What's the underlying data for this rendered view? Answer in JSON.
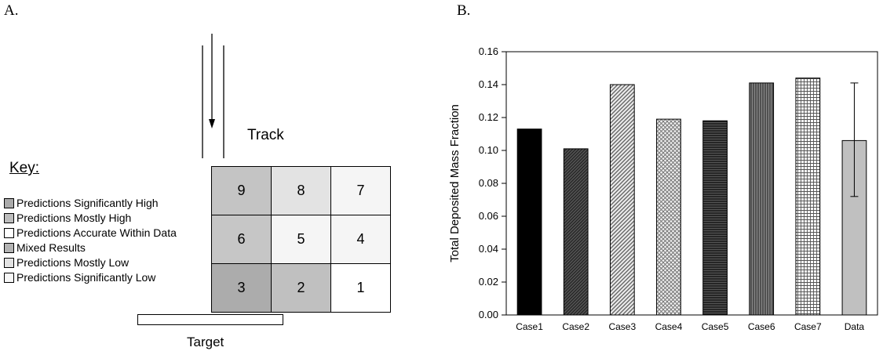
{
  "panel_a": {
    "label": "A.",
    "track_label": "Track",
    "key_title": "Key:",
    "target_label": "Target",
    "key_items": [
      {
        "label": "Predictions Significantly High",
        "color": "#aaaaaa"
      },
      {
        "label": "Predictions Mostly High",
        "color": "#bdbdbd"
      },
      {
        "label": "Predictions Accurate Within Data",
        "color": "#ffffff"
      },
      {
        "label": "Mixed Results",
        "color": "#b3b3b3"
      },
      {
        "label": "Predictions Mostly Low",
        "color": "#e2e2e2"
      },
      {
        "label": "Predictions Significantly Low",
        "color": "#f7f7f7"
      }
    ],
    "grid_cells": [
      {
        "label": "9",
        "color": "#c4c4c4"
      },
      {
        "label": "8",
        "color": "#e3e3e3"
      },
      {
        "label": "7",
        "color": "#f5f5f5"
      },
      {
        "label": "6",
        "color": "#c6c6c6"
      },
      {
        "label": "5",
        "color": "#f5f5f5"
      },
      {
        "label": "4",
        "color": "#f5f5f5"
      },
      {
        "label": "3",
        "color": "#acacac"
      },
      {
        "label": "2",
        "color": "#c0c0c0"
      },
      {
        "label": "1",
        "color": "#ffffff"
      }
    ]
  },
  "panel_b": {
    "label": "B."
  },
  "chart_data": {
    "type": "bar",
    "categories": [
      "Case1",
      "Case2",
      "Case3",
      "Case4",
      "Case5",
      "Case6",
      "Case7",
      "Data"
    ],
    "values": [
      0.113,
      0.101,
      0.14,
      0.119,
      0.118,
      0.141,
      0.144,
      0.106
    ],
    "patterns": [
      "solid-black",
      "dense-diagonal",
      "diagonal-hatch",
      "crosshatch",
      "horizontal-lines",
      "vertical-lines",
      "grid",
      "solid-gray"
    ],
    "error_bar": {
      "category": "Data",
      "low": 0.072,
      "high": 0.141
    },
    "ylabel": "Total Deposited Mass Fraction",
    "xlabel": "",
    "ylim": [
      0.0,
      0.16
    ],
    "yticks": [
      "0.00",
      "0.02",
      "0.04",
      "0.06",
      "0.08",
      "0.10",
      "0.12",
      "0.14",
      "0.16"
    ],
    "grid": false,
    "legend": "none"
  }
}
